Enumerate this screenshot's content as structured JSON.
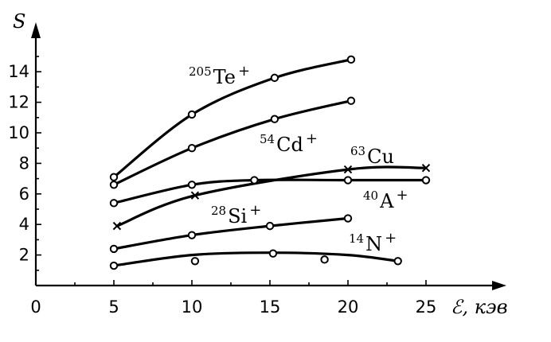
{
  "chart_data": {
    "type": "line",
    "xlabel": "ℰ, кэв",
    "ylabel": "S",
    "xlim": [
      0,
      25
    ],
    "ylim": [
      0,
      16
    ],
    "x_ticks": [
      0,
      5,
      10,
      15,
      20,
      25
    ],
    "y_ticks": [
      2,
      4,
      6,
      8,
      10,
      12,
      14
    ],
    "grid": false,
    "series": [
      {
        "name": "205Te+",
        "label_mass": "205",
        "label_symbol": "Te",
        "label_charge": "+",
        "marker": "circle",
        "points": [
          [
            5,
            7.1
          ],
          [
            10,
            11.2
          ],
          [
            15.3,
            13.6
          ],
          [
            20.2,
            14.8
          ]
        ]
      },
      {
        "name": "54Cd+",
        "label_mass": "54",
        "label_symbol": "Cd",
        "label_charge": "+",
        "marker": "circle",
        "points": [
          [
            5,
            6.6
          ],
          [
            10,
            9.0
          ],
          [
            15.3,
            10.9
          ],
          [
            20.2,
            12.1
          ]
        ]
      },
      {
        "name": "63Cu",
        "label_mass": "63",
        "label_symbol": "Cu",
        "label_charge": "",
        "marker": "cross",
        "points": [
          [
            5.2,
            3.9
          ],
          [
            10.2,
            5.9
          ],
          [
            20,
            7.6
          ],
          [
            25,
            7.7
          ]
        ]
      },
      {
        "name": "40A+",
        "label_mass": "40",
        "label_symbol": "A",
        "label_charge": "+",
        "marker": "circle",
        "points": [
          [
            5,
            5.4
          ],
          [
            10,
            6.6
          ],
          [
            14,
            6.9
          ],
          [
            20,
            6.9
          ],
          [
            25,
            6.9
          ]
        ]
      },
      {
        "name": "28Si+",
        "label_mass": "28",
        "label_symbol": "Si",
        "label_charge": "+",
        "marker": "circle",
        "points": [
          [
            5,
            2.4
          ],
          [
            10,
            3.3
          ],
          [
            15,
            3.9
          ],
          [
            20,
            4.4
          ]
        ]
      },
      {
        "name": "14N+",
        "label_mass": "14",
        "label_symbol": "N",
        "label_charge": "+",
        "marker": "circle",
        "points": [
          [
            5,
            1.3
          ],
          [
            10.2,
            1.6
          ],
          [
            15.2,
            2.1
          ],
          [
            18.5,
            1.7
          ],
          [
            23.2,
            1.6
          ]
        ],
        "curve": [
          [
            5,
            1.3
          ],
          [
            10,
            2.0
          ],
          [
            15,
            2.15
          ],
          [
            20,
            2.0
          ],
          [
            23.2,
            1.6
          ]
        ]
      }
    ]
  }
}
